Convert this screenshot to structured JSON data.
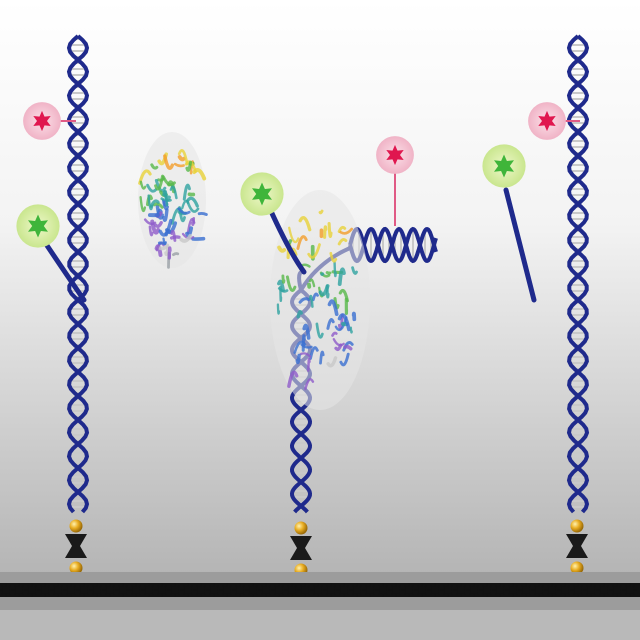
{
  "figure": {
    "panels": [
      {
        "id": "before",
        "dna": "double-helix",
        "fluorophores": [
          "red-star",
          "green-star"
        ],
        "green_strand": "paired-with-helix"
      },
      {
        "id": "during",
        "dna": "double-helix",
        "protein": "helicase-structure",
        "fluorophores": [
          "red-star",
          "green-star"
        ],
        "green_strand": "separating"
      },
      {
        "id": "after",
        "dna": "double-helix",
        "fluorophores": [
          "red-star",
          "green-star"
        ],
        "green_strand": "released"
      }
    ],
    "free_protein": "helicase-structure",
    "surface": "streptavidin-coated-surface",
    "anchor": "biotin-streptavidin-link",
    "colors": {
      "background_top": "#ffffff",
      "background_bottom": "#a9a9a9",
      "dna_blue": "#1f2a8c",
      "dna_rungs": "#c9c9c9",
      "red_star": "#e0174f",
      "red_glow": "#f4c4d3",
      "green_star": "#3fb53a",
      "green_glow": "#d7eea3",
      "linker_pink": "#e05a85",
      "anchor_gold": "#e2a21a",
      "surface_black": "#111111"
    }
  }
}
